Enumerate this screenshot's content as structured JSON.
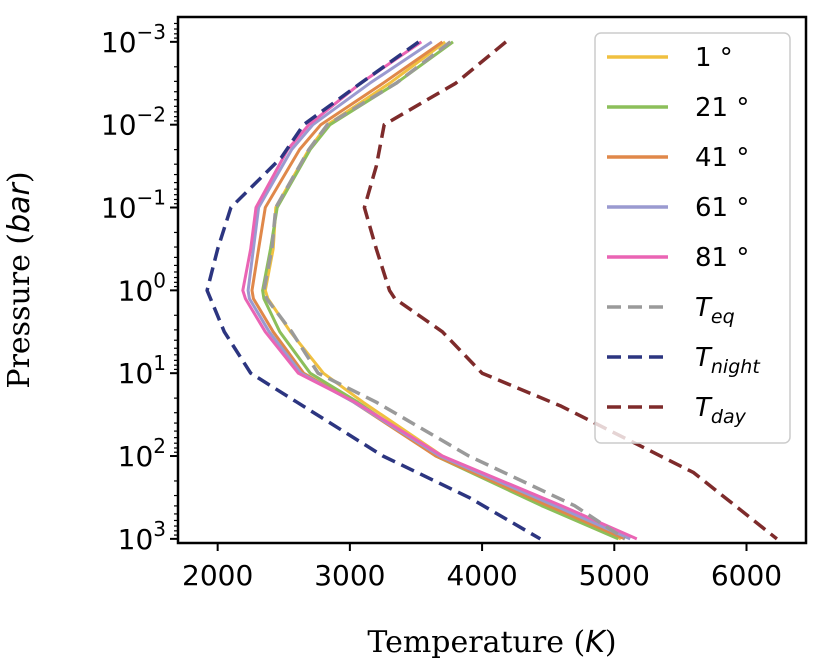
{
  "chart_data": {
    "type": "line",
    "xlabel_plain": "Temperature (",
    "xlabel_var": "K",
    "xlabel_end": ")",
    "ylabel_plain": "Pressure (",
    "ylabel_var": "bar",
    "ylabel_end": ")",
    "xlim": [
      1700,
      6450
    ],
    "xscale": "linear",
    "yscale": "log",
    "yaxis_inverted": true,
    "ylim_log10": [
      -3.3,
      3.05
    ],
    "xticks": [
      {
        "value": 2000,
        "label": "2000"
      },
      {
        "value": 3000,
        "label": "3000"
      },
      {
        "value": 4000,
        "label": "4000"
      },
      {
        "value": 5000,
        "label": "5000"
      },
      {
        "value": 6000,
        "label": "6000"
      }
    ],
    "yticks": [
      {
        "log": -3,
        "base": "10",
        "exp": "−3"
      },
      {
        "log": -2,
        "base": "10",
        "exp": "−2"
      },
      {
        "log": -1,
        "base": "10",
        "exp": "−1"
      },
      {
        "log": 0,
        "base": "10",
        "exp": "0"
      },
      {
        "log": 1,
        "base": "10",
        "exp": "1"
      },
      {
        "log": 2,
        "base": "10",
        "exp": "2"
      },
      {
        "log": 3,
        "base": "10",
        "exp": "3"
      }
    ],
    "legend_position": "top-right",
    "series": [
      {
        "name": "1 °",
        "color": "#f0c040",
        "dash": false,
        "points": [
          [
            3720,
            -3
          ],
          [
            3300,
            -2.5
          ],
          [
            2830,
            -2
          ],
          [
            2690,
            -1.7
          ],
          [
            2440,
            -1
          ],
          [
            2420,
            -0.5
          ],
          [
            2360,
            0
          ],
          [
            2380,
            0.1
          ],
          [
            2550,
            0.5
          ],
          [
            2800,
            1
          ],
          [
            3100,
            1.35
          ],
          [
            3700,
            2
          ],
          [
            4500,
            2.6
          ],
          [
            5050,
            3
          ]
        ]
      },
      {
        "name": "21 °",
        "color": "#8cbf5a",
        "dash": false,
        "points": [
          [
            3780,
            -3
          ],
          [
            3350,
            -2.5
          ],
          [
            2850,
            -2
          ],
          [
            2700,
            -1.7
          ],
          [
            2450,
            -1
          ],
          [
            2400,
            -0.5
          ],
          [
            2340,
            0
          ],
          [
            2350,
            0.1
          ],
          [
            2470,
            0.5
          ],
          [
            2700,
            1
          ],
          [
            3060,
            1.35
          ],
          [
            3650,
            2
          ],
          [
            4450,
            2.6
          ],
          [
            5030,
            3
          ]
        ]
      },
      {
        "name": "41 °",
        "color": "#e0884a",
        "dash": false,
        "points": [
          [
            3700,
            -3
          ],
          [
            3250,
            -2.5
          ],
          [
            2780,
            -2
          ],
          [
            2620,
            -1.7
          ],
          [
            2360,
            -1
          ],
          [
            2310,
            -0.5
          ],
          [
            2260,
            0
          ],
          [
            2270,
            0.1
          ],
          [
            2420,
            0.5
          ],
          [
            2650,
            1
          ],
          [
            3030,
            1.35
          ],
          [
            3650,
            2
          ],
          [
            4500,
            2.6
          ],
          [
            5080,
            3
          ]
        ]
      },
      {
        "name": "61 °",
        "color": "#9a9ad0",
        "dash": false,
        "points": [
          [
            3620,
            -3
          ],
          [
            3150,
            -2.5
          ],
          [
            2720,
            -2
          ],
          [
            2560,
            -1.7
          ],
          [
            2310,
            -1
          ],
          [
            2270,
            -0.5
          ],
          [
            2230,
            0
          ],
          [
            2240,
            0.1
          ],
          [
            2390,
            0.5
          ],
          [
            2630,
            1
          ],
          [
            3030,
            1.35
          ],
          [
            3680,
            2
          ],
          [
            4550,
            2.6
          ],
          [
            5120,
            3
          ]
        ]
      },
      {
        "name": "81 °",
        "color": "#ea64b4",
        "dash": false,
        "points": [
          [
            3540,
            -3
          ],
          [
            3080,
            -2.5
          ],
          [
            2690,
            -2
          ],
          [
            2530,
            -1.7
          ],
          [
            2290,
            -1
          ],
          [
            2250,
            -0.5
          ],
          [
            2190,
            0
          ],
          [
            2210,
            0.1
          ],
          [
            2360,
            0.5
          ],
          [
            2610,
            1
          ],
          [
            3040,
            1.35
          ],
          [
            3700,
            2
          ],
          [
            4600,
            2.6
          ],
          [
            5170,
            3
          ]
        ]
      },
      {
        "name": "T_eq",
        "label_base": "T",
        "label_sub": "eq",
        "color": "#9a9a9a",
        "dash": true,
        "points": [
          [
            3760,
            -3
          ],
          [
            3350,
            -2.5
          ],
          [
            2830,
            -2
          ],
          [
            2690,
            -1.7
          ],
          [
            2440,
            -1
          ],
          [
            2410,
            -0.5
          ],
          [
            2350,
            0
          ],
          [
            2370,
            0.1
          ],
          [
            2560,
            0.5
          ],
          [
            2760,
            1
          ],
          [
            3200,
            1.35
          ],
          [
            3900,
            2
          ],
          [
            4700,
            2.6
          ],
          [
            5080,
            3
          ]
        ]
      },
      {
        "name": "T_night",
        "label_base": "T",
        "label_sub": "night",
        "color": "#2c3580",
        "dash": true,
        "points": [
          [
            3520,
            -3
          ],
          [
            3080,
            -2.5
          ],
          [
            2650,
            -2
          ],
          [
            2480,
            -1.6
          ],
          [
            2100,
            -1
          ],
          [
            2000,
            -0.5
          ],
          [
            1920,
            0
          ],
          [
            2050,
            0.5
          ],
          [
            2250,
            1
          ],
          [
            2600,
            1.35
          ],
          [
            3250,
            2
          ],
          [
            3900,
            2.5
          ],
          [
            4440,
            3
          ]
        ]
      },
      {
        "name": "T_day",
        "label_base": "T",
        "label_sub": "day",
        "color": "#7e2b2b",
        "dash": true,
        "points": [
          [
            4180,
            -3
          ],
          [
            3800,
            -2.5
          ],
          [
            3260,
            -2
          ],
          [
            3200,
            -1.5
          ],
          [
            3110,
            -1
          ],
          [
            3200,
            -0.5
          ],
          [
            3300,
            0
          ],
          [
            3340,
            0.1
          ],
          [
            3700,
            0.5
          ],
          [
            4000,
            1
          ],
          [
            4600,
            1.4
          ],
          [
            5600,
            2.2
          ],
          [
            6230,
            3
          ]
        ]
      }
    ]
  }
}
